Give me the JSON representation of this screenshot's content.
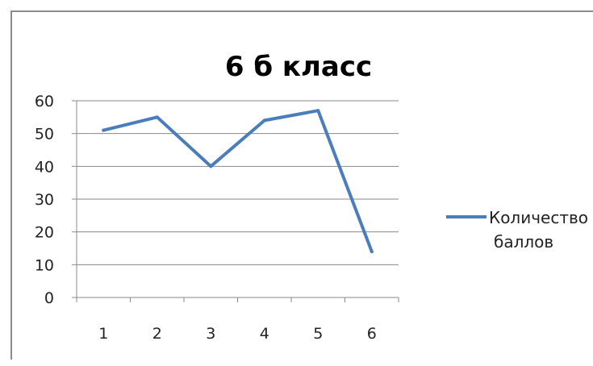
{
  "chart_data": {
    "type": "line",
    "title": "6 б класс",
    "categories": [
      "1",
      "2",
      "3",
      "4",
      "5",
      "6"
    ],
    "y_ticks": [
      "0",
      "10",
      "20",
      "30",
      "40",
      "50",
      "60"
    ],
    "ylim": [
      0,
      60
    ],
    "grid": true,
    "legend_position": "right",
    "series": [
      {
        "name_lines": [
          "Количество",
          "баллов"
        ],
        "color": "#4a7ebb",
        "values": [
          51,
          55,
          40,
          54,
          57,
          14
        ]
      }
    ]
  }
}
